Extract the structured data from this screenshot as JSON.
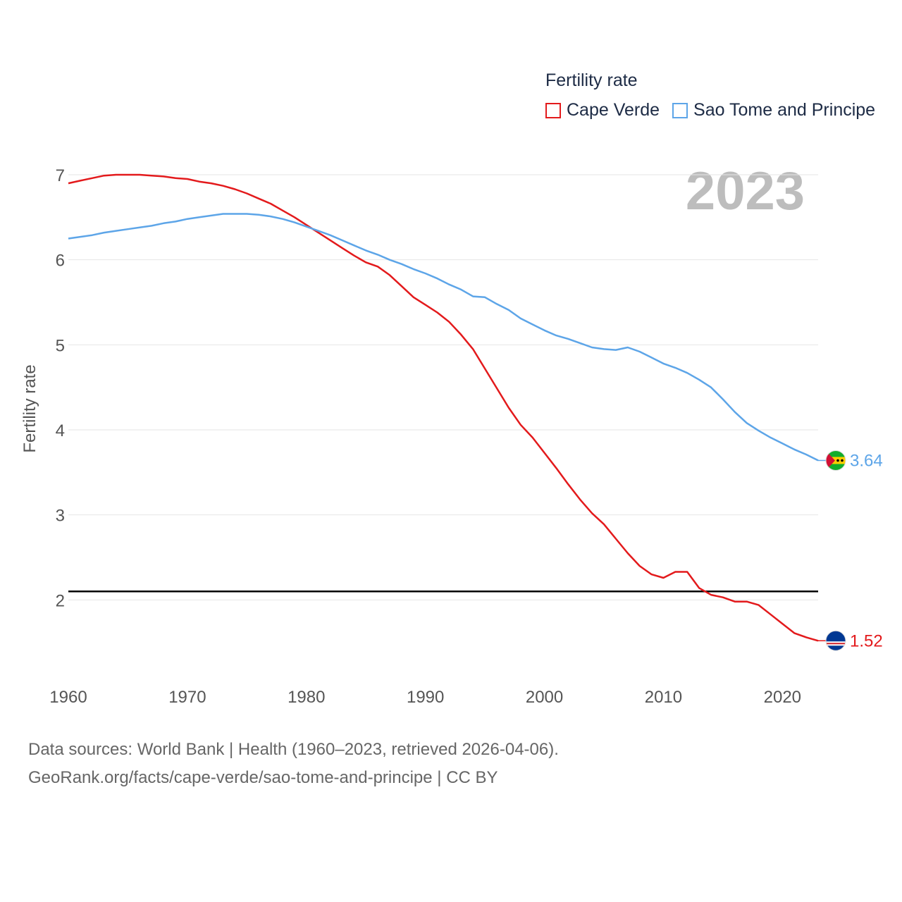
{
  "legend": {
    "title": "Fertility rate",
    "items": [
      {
        "label": "Cape Verde",
        "color": "#e31a1c"
      },
      {
        "label": "Sao Tome and Principe",
        "color": "#5da5e8"
      }
    ]
  },
  "year_badge": "2023",
  "footer": {
    "line1": "Data sources: World Bank | Health (1960–2023, retrieved 2026-04-06).",
    "line2": "GeoRank.org/facts/cape-verde/sao-tome-and-principe | CC BY"
  },
  "chart_data": {
    "type": "line",
    "title": "",
    "xlabel": "",
    "ylabel": "Fertility rate",
    "xlim": [
      1960,
      2023
    ],
    "ylim": [
      1.0,
      7.0
    ],
    "xticks": [
      1960,
      1970,
      1980,
      1990,
      2000,
      2010,
      2020
    ],
    "yticks": [
      2,
      3,
      4,
      5,
      6,
      7
    ],
    "grid": true,
    "legend_position": "top-right",
    "reference_line": {
      "y": 2.1,
      "color": "#000000"
    },
    "x": [
      1960,
      1961,
      1962,
      1963,
      1964,
      1965,
      1966,
      1967,
      1968,
      1969,
      1970,
      1971,
      1972,
      1973,
      1974,
      1975,
      1976,
      1977,
      1978,
      1979,
      1980,
      1981,
      1982,
      1983,
      1984,
      1985,
      1986,
      1987,
      1988,
      1989,
      1990,
      1991,
      1992,
      1993,
      1994,
      1995,
      1996,
      1997,
      1998,
      1999,
      2000,
      2001,
      2002,
      2003,
      2004,
      2005,
      2006,
      2007,
      2008,
      2009,
      2010,
      2011,
      2012,
      2013,
      2014,
      2015,
      2016,
      2017,
      2018,
      2019,
      2020,
      2021,
      2022,
      2023
    ],
    "series": [
      {
        "name": "Cape Verde",
        "color": "#e31a1c",
        "end_label": "1.52",
        "values": [
          6.9,
          6.93,
          6.96,
          6.99,
          7.0,
          7.0,
          7.0,
          6.99,
          6.98,
          6.96,
          6.95,
          6.92,
          6.9,
          6.87,
          6.83,
          6.78,
          6.72,
          6.66,
          6.58,
          6.5,
          6.41,
          6.32,
          6.23,
          6.14,
          6.05,
          5.97,
          5.92,
          5.82,
          5.69,
          5.56,
          5.47,
          5.38,
          5.27,
          5.12,
          4.95,
          4.72,
          4.49,
          4.26,
          4.06,
          3.91,
          3.73,
          3.55,
          3.36,
          3.18,
          3.02,
          2.89,
          2.72,
          2.55,
          2.4,
          2.3,
          2.26,
          2.33,
          2.33,
          2.14,
          2.06,
          2.03,
          1.98,
          1.98,
          1.94,
          1.83,
          1.72,
          1.61,
          1.56,
          1.52
        ]
      },
      {
        "name": "Sao Tome and Principe",
        "color": "#5da5e8",
        "end_label": "3.64",
        "values": [
          6.25,
          6.27,
          6.29,
          6.32,
          6.34,
          6.36,
          6.38,
          6.4,
          6.43,
          6.45,
          6.48,
          6.5,
          6.52,
          6.54,
          6.54,
          6.54,
          6.53,
          6.51,
          6.48,
          6.44,
          6.39,
          6.34,
          6.29,
          6.23,
          6.17,
          6.11,
          6.06,
          6.0,
          5.95,
          5.89,
          5.84,
          5.78,
          5.71,
          5.65,
          5.57,
          5.56,
          5.48,
          5.41,
          5.31,
          5.24,
          5.17,
          5.11,
          5.07,
          5.02,
          4.97,
          4.95,
          4.94,
          4.97,
          4.92,
          4.85,
          4.78,
          4.73,
          4.67,
          4.59,
          4.5,
          4.36,
          4.21,
          4.08,
          3.99,
          3.91,
          3.84,
          3.77,
          3.71,
          3.64
        ]
      }
    ]
  }
}
